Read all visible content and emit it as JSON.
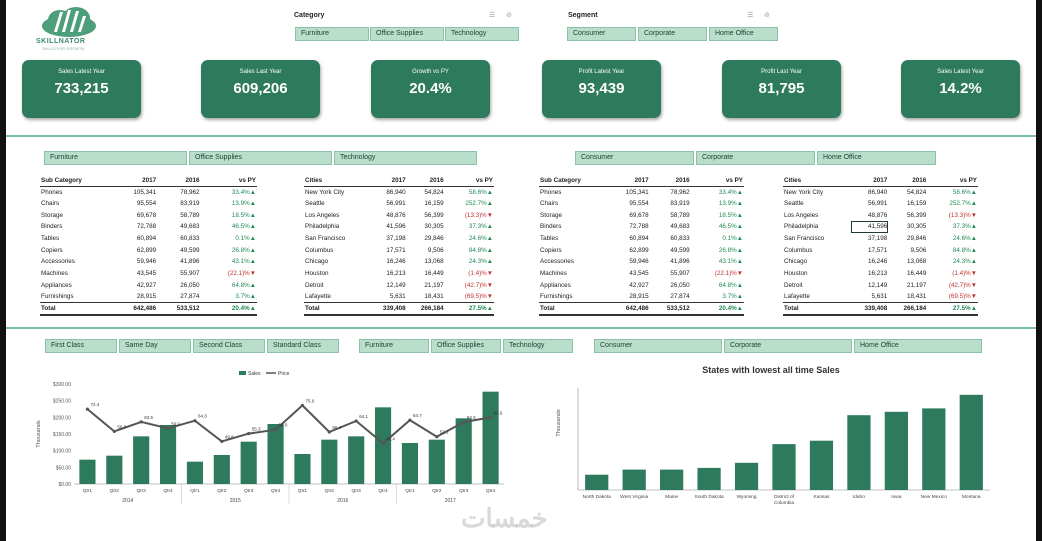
{
  "brand": {
    "name": "SKILLNATOR",
    "tagline": "SKILLS FOR GROWTH"
  },
  "colors": {
    "accent": "#2e7a5c",
    "chip": "#b9dfcc",
    "bar": "#2e7a5c",
    "line": "#555555",
    "positive": "#1e8a55",
    "negative": "#c03030"
  },
  "slicers": {
    "category": {
      "title": "Category",
      "items": [
        "Furniture",
        "Office Supplies",
        "Technology"
      ]
    },
    "segment": {
      "title": "Segment",
      "items": [
        "Consumer",
        "Corporate",
        "Home Office"
      ]
    }
  },
  "kpis": [
    {
      "label": "Sales Latest Year",
      "value": "733,215"
    },
    {
      "label": "Sales Last Year",
      "value": "609,206"
    },
    {
      "label": "Growth vs PY",
      "value": "20.4%"
    },
    {
      "label": "Profit Latest Year",
      "value": "93,439"
    },
    {
      "label": "Profit Last Year",
      "value": "81,795"
    },
    {
      "label": "Sales Latest Year",
      "value": "14.2%"
    }
  ],
  "filters_mid": {
    "category": [
      "Furniture",
      "Office Supplies",
      "Technology"
    ],
    "segment": [
      "Consumer",
      "Corporate",
      "Home Office"
    ]
  },
  "tables": {
    "subcat": {
      "headers": [
        "Sub Category",
        "2017",
        "2016",
        "vs PY"
      ],
      "rows": [
        [
          "Phones",
          "105,341",
          "78,962",
          "33.4%▲"
        ],
        [
          "Chairs",
          "95,554",
          "83,919",
          "13.9%▲"
        ],
        [
          "Storage",
          "69,678",
          "58,789",
          "18.5%▲"
        ],
        [
          "Binders",
          "72,788",
          "49,683",
          "46.5%▲"
        ],
        [
          "Tables",
          "60,894",
          "60,833",
          "0.1%▲"
        ],
        [
          "Copiers",
          "62,899",
          "49,599",
          "26.8%▲"
        ],
        [
          "Accessories",
          "59,946",
          "41,896",
          "43.1%▲"
        ],
        [
          "Machines",
          "43,545",
          "55,907",
          "(22.1)%▼"
        ],
        [
          "Appliances",
          "42,927",
          "26,050",
          "64.8%▲"
        ],
        [
          "Furnishings",
          "28,915",
          "27,874",
          "3.7%▲"
        ]
      ],
      "total": [
        "Total",
        "642,486",
        "533,512",
        "20.4%▲"
      ]
    },
    "cities": {
      "headers": [
        "Cities",
        "2017",
        "2016",
        "vs PY"
      ],
      "rows": [
        [
          "New York City",
          "86,940",
          "54,824",
          "58.6%▲"
        ],
        [
          "Seattle",
          "56,991",
          "16,159",
          "252.7%▲"
        ],
        [
          "Los Angeles",
          "48,876",
          "56,399",
          "(13.3)%▼"
        ],
        [
          "Philadelphia",
          "41,596",
          "30,305",
          "37.3%▲"
        ],
        [
          "San Francisco",
          "37,198",
          "29,846",
          "24.6%▲"
        ],
        [
          "Columbus",
          "17,571",
          "9,506",
          "84.8%▲"
        ],
        [
          "Chicago",
          "16,246",
          "13,068",
          "24.3%▲"
        ],
        [
          "Houston",
          "16,213",
          "16,449",
          "(1.4)%▼"
        ],
        [
          "Detroit",
          "12,149",
          "21,197",
          "(42.7)%▼"
        ],
        [
          "Lafayette",
          "5,631",
          "18,431",
          "(69.5)%▼"
        ]
      ],
      "total": [
        "Total",
        "339,408",
        "266,184",
        "27.5%▲"
      ]
    }
  },
  "filters_bottom": {
    "ship_mode": [
      "First Class",
      "Same Day",
      "Second Class",
      "Standard Class"
    ],
    "category": [
      "Furniture",
      "Office Supplies",
      "Technology"
    ],
    "segment": [
      "Consumer",
      "Corporate",
      "Home Office"
    ]
  },
  "chart_data": [
    {
      "type": "bar",
      "title": "",
      "ylabel": "Thousands",
      "xlabel": "",
      "ylim": [
        0,
        300
      ],
      "yticks": [
        "$0.00",
        "$50.00",
        "$100.00",
        "$150.00",
        "$200.00",
        "$250.00",
        "$300.00"
      ],
      "legend": [
        "Sales",
        "Price"
      ],
      "categories": [
        "Qtr1",
        "Qtr2",
        "Qtr3",
        "Qtr4",
        "Qtr1",
        "Qtr2",
        "Qtr3",
        "Qtr4",
        "Qtr1",
        "Qtr2",
        "Qtr3",
        "Qtr4",
        "Qtr1",
        "Qtr2",
        "Qtr3",
        "Qtr4"
      ],
      "years": [
        "2014",
        "2015",
        "2016",
        "2017"
      ],
      "series": [
        {
          "name": "Sales",
          "type": "bar",
          "values": [
            73,
            85,
            143,
            177,
            67,
            87,
            127,
            180,
            90,
            133,
            143,
            230,
            123,
            133,
            197,
            277
          ]
        },
        {
          "name": "Price",
          "type": "line",
          "values": [
            72.4,
            56.8,
            63.5,
            59.0,
            64.3,
            49.8,
            55.3,
            58.0,
            75.0,
            56.4,
            64.1,
            48.4,
            64.7,
            53.1,
            63.3,
            66.6
          ],
          "labels": [
            "72.4",
            "56.8",
            "63.5",
            "59.0",
            "64.3",
            "49.8",
            "55.3",
            "58.0",
            "75.0",
            "56.4",
            "64.1",
            "48.4",
            "64.7",
            "53.1",
            "63.3",
            "66.6"
          ]
        }
      ]
    },
    {
      "type": "bar",
      "title": "States with lowest all time Sales",
      "ylabel": "Thousands",
      "xlabel": "",
      "ylim": [
        0,
        40
      ],
      "categories": [
        "North Dakota",
        "West Virginia",
        "Maine",
        "South Dakota",
        "Wyoming",
        "District of Columbia",
        "Kansas",
        "Idaho",
        "Iowa",
        "New Mexico",
        "Montana"
      ],
      "values": [
        0.9,
        1.2,
        1.2,
        1.3,
        1.6,
        2.7,
        2.9,
        4.4,
        4.6,
        4.8,
        5.6
      ]
    }
  ],
  "watermark": "خمسات"
}
